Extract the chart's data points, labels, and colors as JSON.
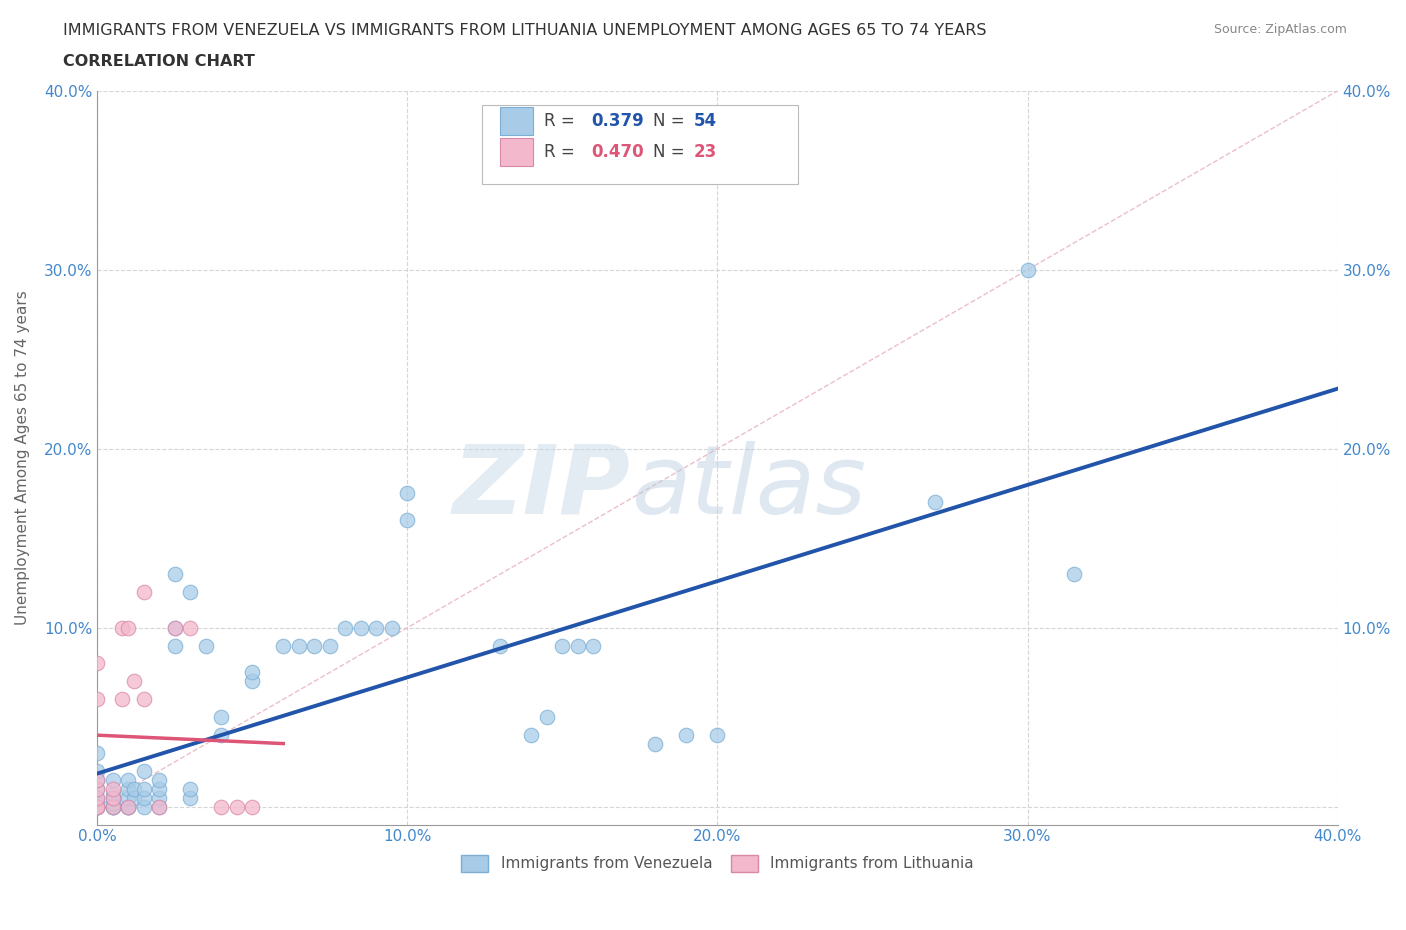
{
  "title_line1": "IMMIGRANTS FROM VENEZUELA VS IMMIGRANTS FROM LITHUANIA UNEMPLOYMENT AMONG AGES 65 TO 74 YEARS",
  "title_line2": "CORRELATION CHART",
  "source": "Source: ZipAtlas.com",
  "ylabel": "Unemployment Among Ages 65 to 74 years",
  "xlim": [
    0.0,
    0.4
  ],
  "ylim": [
    -0.01,
    0.4
  ],
  "xticks": [
    0.0,
    0.1,
    0.2,
    0.3,
    0.4
  ],
  "yticks": [
    0.0,
    0.1,
    0.2,
    0.3,
    0.4
  ],
  "xticklabels": [
    "0.0%",
    "10.0%",
    "20.0%",
    "30.0%",
    "40.0%"
  ],
  "yticklabels": [
    "",
    "10.0%",
    "20.0%",
    "30.0%",
    "40.0%"
  ],
  "venezuela_color": "#a8cce8",
  "venezuela_edge": "#7aaed4",
  "lithuania_color": "#f4b8cc",
  "lithuania_edge": "#d888a8",
  "regression_venezuela_color": "#2255aa",
  "regression_lithuania_color": "#dd5577",
  "watermark_zip": "ZIP",
  "watermark_atlas": "atlas",
  "legend_R_venezuela": "0.379",
  "legend_N_venezuela": "54",
  "legend_R_lithuania": "0.470",
  "legend_N_lithuania": "23",
  "venezuela_x": [
    0.0,
    0.0,
    0.0,
    0.0,
    0.0,
    0.0,
    0.0,
    0.0,
    0.0,
    0.0,
    0.005,
    0.005,
    0.005,
    0.005,
    0.005,
    0.005,
    0.005,
    0.01,
    0.01,
    0.01,
    0.01,
    0.01,
    0.01,
    0.012,
    0.012,
    0.015,
    0.015,
    0.015,
    0.015,
    0.02,
    0.02,
    0.02,
    0.02,
    0.025,
    0.025,
    0.025,
    0.03,
    0.03,
    0.03,
    0.035,
    0.04,
    0.04,
    0.05,
    0.05,
    0.06,
    0.065,
    0.07,
    0.075,
    0.08,
    0.085,
    0.09,
    0.095,
    0.1,
    0.1
  ],
  "venezuela_y": [
    0.0,
    0.0,
    0.0,
    0.0,
    0.002,
    0.005,
    0.01,
    0.015,
    0.02,
    0.03,
    0.0,
    0.0,
    0.0,
    0.002,
    0.005,
    0.007,
    0.015,
    0.0,
    0.0,
    0.0,
    0.005,
    0.01,
    0.015,
    0.005,
    0.01,
    0.0,
    0.005,
    0.01,
    0.02,
    0.0,
    0.005,
    0.01,
    0.015,
    0.09,
    0.1,
    0.13,
    0.005,
    0.01,
    0.12,
    0.09,
    0.04,
    0.05,
    0.07,
    0.075,
    0.09,
    0.09,
    0.09,
    0.09,
    0.1,
    0.1,
    0.1,
    0.1,
    0.16,
    0.175
  ],
  "venezuela_x2": [
    0.13,
    0.14,
    0.145,
    0.15,
    0.155,
    0.16,
    0.18,
    0.19,
    0.2,
    0.27,
    0.3,
    0.315
  ],
  "venezuela_y2": [
    0.09,
    0.04,
    0.05,
    0.09,
    0.09,
    0.09,
    0.035,
    0.04,
    0.04,
    0.17,
    0.3,
    0.13
  ],
  "lithuania_x": [
    0.0,
    0.0,
    0.0,
    0.0,
    0.0,
    0.0,
    0.0,
    0.005,
    0.005,
    0.005,
    0.008,
    0.008,
    0.01,
    0.01,
    0.012,
    0.015,
    0.015,
    0.02,
    0.025,
    0.03,
    0.04,
    0.045,
    0.05
  ],
  "lithuania_y": [
    0.0,
    0.0,
    0.005,
    0.01,
    0.015,
    0.06,
    0.08,
    0.0,
    0.005,
    0.01,
    0.06,
    0.1,
    0.0,
    0.1,
    0.07,
    0.06,
    0.12,
    0.0,
    0.1,
    0.1,
    0.0,
    0.0,
    0.0
  ],
  "background_color": "#ffffff",
  "grid_color": "#cccccc",
  "title_color": "#333333",
  "axis_label_color": "#666666",
  "tick_label_color": "#4488cc",
  "right_ytick_color": "#4488cc"
}
